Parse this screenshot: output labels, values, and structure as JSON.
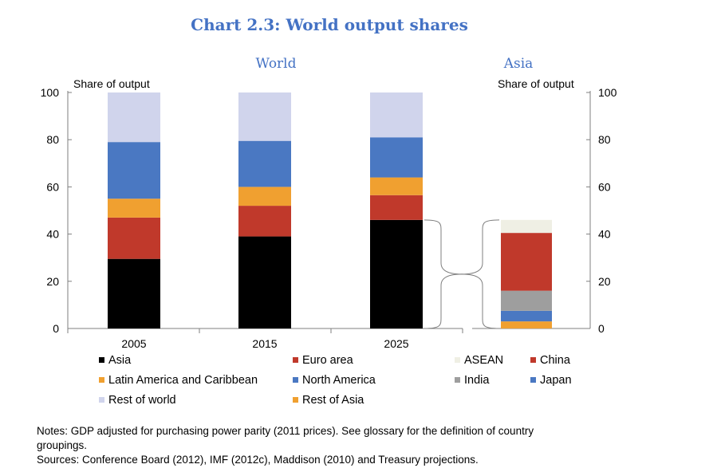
{
  "title": "Chart 2.3: World output shares",
  "chart_data": [
    {
      "type": "bar",
      "stacked": true,
      "panel_title": "World",
      "ylabel": "Share of output",
      "ylim": [
        0,
        100
      ],
      "yticks": [
        0,
        20,
        40,
        60,
        80,
        100
      ],
      "categories": [
        "2005",
        "2015",
        "2025"
      ],
      "series": [
        {
          "name": "Asia",
          "color": "#000000",
          "values": [
            29.5,
            39,
            46
          ]
        },
        {
          "name": "Euro area",
          "color": "#c0392b",
          "values": [
            17.5,
            13,
            10.5
          ]
        },
        {
          "name": "Latin America and Caribbean",
          "color": "#f0a030",
          "values": [
            8,
            8,
            7.5
          ]
        },
        {
          "name": "North America",
          "color": "#4a78c2",
          "values": [
            24,
            19.5,
            17
          ]
        },
        {
          "name": "Rest of world",
          "color": "#d0d4ec",
          "values": [
            21,
            20.5,
            19
          ]
        }
      ]
    },
    {
      "type": "bar",
      "stacked": true,
      "panel_title": "Asia",
      "ylabel": "Share of output",
      "ylim": [
        0,
        100
      ],
      "yticks": [
        0,
        20,
        40,
        60,
        80,
        100
      ],
      "categories": [
        ""
      ],
      "series": [
        {
          "name": "Rest of Asia",
          "color": "#f0a030",
          "values": [
            3
          ]
        },
        {
          "name": "Japan",
          "color": "#4a78c2",
          "values": [
            4.5
          ]
        },
        {
          "name": "India",
          "color": "#9e9e9e",
          "values": [
            8.5
          ]
        },
        {
          "name": "China",
          "color": "#c0392b",
          "values": [
            24.5
          ]
        },
        {
          "name": "ASEAN",
          "color": "#efefe4",
          "values": [
            5.5
          ]
        }
      ]
    }
  ],
  "legend": [
    [
      {
        "name": "Asia",
        "color": "#000000"
      },
      {
        "name": "Euro area",
        "color": "#c0392b"
      },
      {
        "name": "ASEAN",
        "color": "#efefe4"
      },
      {
        "name": "China",
        "color": "#c0392b"
      }
    ],
    [
      {
        "name": "Latin America and Caribbean",
        "color": "#f0a030"
      },
      {
        "name": "North America",
        "color": "#4a78c2"
      },
      {
        "name": "India",
        "color": "#9e9e9e"
      },
      {
        "name": "Japan",
        "color": "#4a78c2"
      }
    ],
    [
      {
        "name": "Rest of world",
        "color": "#d0d4ec"
      },
      {
        "name": "Rest of Asia",
        "color": "#f0a030"
      }
    ]
  ],
  "notes": {
    "line1": "Notes: GDP adjusted for purchasing power parity (2011 prices). See glossary for the definition of country",
    "line2": "groupings.",
    "line3": "Sources: Conference Board (2012), IMF (2012c), Maddison (2010) and Treasury projections."
  }
}
